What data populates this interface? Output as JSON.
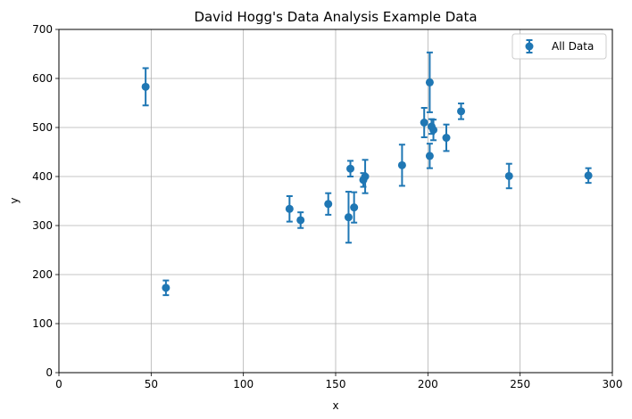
{
  "chart_data": {
    "type": "scatter",
    "title": "David Hogg's Data Analysis Example Data",
    "xlabel": "x",
    "ylabel": "y",
    "xlim": [
      0,
      300
    ],
    "ylim": [
      0,
      700
    ],
    "xticks": [
      "0",
      "50",
      "100",
      "150",
      "200",
      "250",
      "300"
    ],
    "yticks": [
      "0",
      "100",
      "200",
      "300",
      "400",
      "500",
      "600",
      "700"
    ],
    "grid": true,
    "legend": {
      "position": "top-right",
      "entries": [
        "All Data"
      ]
    },
    "series": [
      {
        "name": "All Data",
        "color": "#1f77b4",
        "error_bars": "y",
        "points": [
          {
            "x": 47,
            "y": 583,
            "err": 38
          },
          {
            "x": 58,
            "y": 173,
            "err": 15
          },
          {
            "x": 125,
            "y": 334,
            "err": 26
          },
          {
            "x": 131,
            "y": 311,
            "err": 16
          },
          {
            "x": 146,
            "y": 344,
            "err": 22
          },
          {
            "x": 157,
            "y": 317,
            "err": 52
          },
          {
            "x": 158,
            "y": 416,
            "err": 16
          },
          {
            "x": 160,
            "y": 337,
            "err": 31
          },
          {
            "x": 165,
            "y": 393,
            "err": 14
          },
          {
            "x": 166,
            "y": 400,
            "err": 34
          },
          {
            "x": 186,
            "y": 423,
            "err": 42
          },
          {
            "x": 198,
            "y": 510,
            "err": 30
          },
          {
            "x": 201,
            "y": 442,
            "err": 25
          },
          {
            "x": 201,
            "y": 592,
            "err": 61
          },
          {
            "x": 202,
            "y": 502,
            "err": 15
          },
          {
            "x": 203,
            "y": 495,
            "err": 21
          },
          {
            "x": 210,
            "y": 479,
            "err": 27
          },
          {
            "x": 218,
            "y": 533,
            "err": 16
          },
          {
            "x": 244,
            "y": 401,
            "err": 25
          },
          {
            "x": 287,
            "y": 402,
            "err": 15
          }
        ]
      }
    ]
  }
}
